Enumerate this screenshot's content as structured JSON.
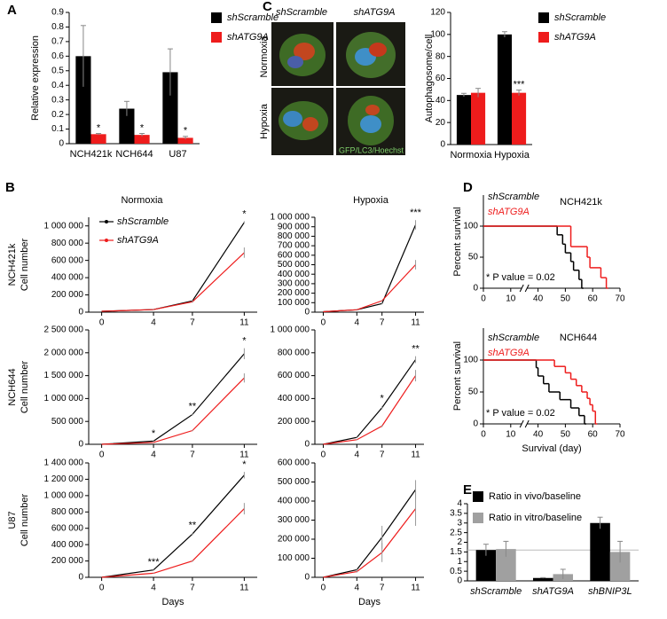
{
  "chart_data": [
    {
      "type": "bar",
      "panel": "A",
      "ylabel": "Relative expression",
      "categories": [
        "NCH421k",
        "NCH644",
        "U87"
      ],
      "series": [
        {
          "name": "shScramble",
          "color": "#000000",
          "values": [
            0.6,
            0.24,
            0.49
          ],
          "errors": [
            0.21,
            0.05,
            0.16
          ]
        },
        {
          "name": "shATG9A",
          "color": "#ee1c1c",
          "values": [
            0.065,
            0.06,
            0.04
          ],
          "errors": [
            0.005,
            0.01,
            0.01
          ]
        }
      ],
      "stars": [
        "*",
        "*",
        "*"
      ],
      "ylim": [
        0,
        0.9
      ],
      "yticks": [
        0,
        0.1,
        0.2,
        0.3,
        0.4,
        0.5,
        0.6,
        0.7,
        0.8,
        0.9
      ],
      "legend": true
    },
    {
      "type": "bar",
      "panel": "C",
      "ylabel": "Autophagosome/cell",
      "categories": [
        "Normoxia",
        "Hypoxia"
      ],
      "series": [
        {
          "name": "shScramble",
          "color": "#000000",
          "values": [
            45,
            100
          ],
          "errors": [
            1.5,
            2.5
          ]
        },
        {
          "name": "shATG9A",
          "color": "#ee1c1c",
          "values": [
            47,
            47
          ],
          "errors": [
            4,
            2.5
          ]
        }
      ],
      "stars": [
        null,
        "***"
      ],
      "ylim": [
        0,
        120
      ],
      "yticks": [
        0,
        20,
        40,
        60,
        80,
        100,
        120
      ],
      "legend": true
    },
    {
      "type": "line",
      "panel": "B",
      "title": "Normoxia",
      "row_label": "NCH421k",
      "ylabel": "Cell number",
      "x": [
        0,
        4,
        7,
        11
      ],
      "xlim": [
        -1,
        12
      ],
      "xticks": [
        0,
        4,
        7,
        11
      ],
      "series": [
        {
          "name": "shScramble",
          "color": "#000000",
          "values": [
            10000,
            30000,
            130000,
            1040000
          ],
          "errors": [
            0,
            3000,
            10000,
            15000
          ]
        },
        {
          "name": "shATG9A",
          "color": "#ee1c1c",
          "values": [
            10000,
            30000,
            120000,
            690000
          ],
          "errors": [
            0,
            3000,
            10000,
            60000
          ]
        }
      ],
      "stars": [
        null,
        null,
        null,
        "*"
      ],
      "ylim": [
        0,
        1100000
      ],
      "yticks": [
        0,
        {
          "value": 200000,
          "label": "200 000"
        },
        {
          "value": 400000,
          "label": "400 000"
        },
        {
          "value": 600000,
          "label": "600 000"
        },
        {
          "value": 800000,
          "label": "800 000"
        },
        {
          "value": 1000000,
          "label": "1 000 000"
        }
      ],
      "legend": true
    },
    {
      "type": "line",
      "title": "Hypoxia",
      "x": [
        0,
        4,
        7,
        11
      ],
      "xlim": [
        -1,
        12
      ],
      "xticks": [
        0,
        4,
        7,
        11
      ],
      "series": [
        {
          "name": "shScramble",
          "color": "#000000",
          "values": [
            5000,
            25000,
            90000,
            920000
          ],
          "errors": [
            0,
            2000,
            8000,
            50000
          ]
        },
        {
          "name": "shATG9A",
          "color": "#ee1c1c",
          "values": [
            5000,
            25000,
            120000,
            500000
          ],
          "errors": [
            0,
            2000,
            8000,
            50000
          ]
        }
      ],
      "stars": [
        null,
        null,
        null,
        "***"
      ],
      "ylim": [
        0,
        1000000
      ],
      "yticks": [
        0,
        {
          "value": 100000,
          "label": "100 000"
        },
        {
          "value": 200000,
          "label": "200 000"
        },
        {
          "value": 300000,
          "label": "300 000"
        },
        {
          "value": 400000,
          "label": "400 000"
        },
        {
          "value": 500000,
          "label": "500 000"
        },
        {
          "value": 600000,
          "label": "600 000"
        },
        {
          "value": 700000,
          "label": "700 000"
        },
        {
          "value": 800000,
          "label": "800 000"
        },
        {
          "value": 900000,
          "label": "900 000"
        },
        {
          "value": 1000000,
          "label": "1 000 000"
        }
      ]
    },
    {
      "type": "line",
      "row_label": "NCH644",
      "ylabel": "Cell number",
      "x": [
        0,
        4,
        7,
        11
      ],
      "xlim": [
        -1,
        12
      ],
      "xticks": [
        0,
        4,
        7,
        11
      ],
      "series": [
        {
          "name": "shScramble",
          "color": "#000000",
          "values": [
            0,
            70000,
            650000,
            1980000
          ],
          "errors": [
            0,
            10000,
            20000,
            120000
          ]
        },
        {
          "name": "shATG9A",
          "color": "#ee1c1c",
          "values": [
            0,
            40000,
            300000,
            1450000
          ],
          "errors": [
            0,
            5000,
            15000,
            100000
          ]
        }
      ],
      "stars": [
        null,
        "*",
        "**",
        "*"
      ],
      "ylim": [
        0,
        2500000
      ],
      "yticks": [
        0,
        {
          "value": 500000,
          "label": "500 000"
        },
        {
          "value": 1000000,
          "label": "1 000 000"
        },
        {
          "value": 1500000,
          "label": "1 500 000"
        },
        {
          "value": 2000000,
          "label": "2 000 000"
        },
        {
          "value": 2500000,
          "label": "2 500 000"
        }
      ]
    },
    {
      "type": "line",
      "x": [
        0,
        4,
        7,
        11
      ],
      "xlim": [
        -1,
        12
      ],
      "xticks": [
        0,
        4,
        7,
        11
      ],
      "series": [
        {
          "name": "shScramble",
          "color": "#000000",
          "values": [
            0,
            60000,
            320000,
            740000
          ],
          "errors": [
            0,
            5000,
            15000,
            30000
          ]
        },
        {
          "name": "shATG9A",
          "color": "#ee1c1c",
          "values": [
            0,
            40000,
            160000,
            600000
          ],
          "errors": [
            0,
            5000,
            10000,
            50000
          ]
        }
      ],
      "stars": [
        null,
        null,
        "*",
        "**"
      ],
      "ylim": [
        0,
        1000000
      ],
      "yticks": [
        0,
        {
          "value": 200000,
          "label": "200 000"
        },
        {
          "value": 400000,
          "label": "400 000"
        },
        {
          "value": 600000,
          "label": "600 000"
        },
        {
          "value": 800000,
          "label": "800 000"
        },
        {
          "value": 1000000,
          "label": "1 000 000"
        }
      ]
    },
    {
      "type": "line",
      "row_label": "U87",
      "ylabel": "Cell number",
      "xlabel": "Days",
      "x": [
        0,
        4,
        7,
        11
      ],
      "xlim": [
        -1,
        12
      ],
      "xticks": [
        0,
        4,
        7,
        11
      ],
      "series": [
        {
          "name": "shScramble",
          "color": "#000000",
          "values": [
            0,
            90000,
            530000,
            1250000
          ],
          "errors": [
            0,
            5000,
            15000,
            40000
          ]
        },
        {
          "name": "shATG9A",
          "color": "#ee1c1c",
          "values": [
            0,
            50000,
            200000,
            840000
          ],
          "errors": [
            0,
            5000,
            10000,
            70000
          ]
        }
      ],
      "stars": [
        null,
        "***",
        "**",
        "*"
      ],
      "ylim": [
        0,
        1400000
      ],
      "yticks": [
        0,
        {
          "value": 200000,
          "label": "200 000"
        },
        {
          "value": 400000,
          "label": "400 000"
        },
        {
          "value": 600000,
          "label": "600 000"
        },
        {
          "value": 800000,
          "label": "800 000"
        },
        {
          "value": 1000000,
          "label": "1 000 000"
        },
        {
          "value": 1200000,
          "label": "1 200 000"
        },
        {
          "value": 1400000,
          "label": "1 400 000"
        }
      ]
    },
    {
      "type": "line",
      "xlabel": "Days",
      "x": [
        0,
        4,
        7,
        11
      ],
      "xlim": [
        -1,
        12
      ],
      "xticks": [
        0,
        4,
        7,
        11
      ],
      "series": [
        {
          "name": "shScramble",
          "color": "#000000",
          "values": [
            0,
            40000,
            210000,
            460000
          ],
          "errors": [
            0,
            5000,
            60000,
            50000
          ]
        },
        {
          "name": "shATG9A",
          "color": "#ee1c1c",
          "values": [
            0,
            30000,
            130000,
            360000
          ],
          "errors": [
            0,
            5000,
            50000,
            90000
          ]
        }
      ],
      "ylim": [
        0,
        600000
      ],
      "yticks": [
        0,
        {
          "value": 100000,
          "label": "100 000"
        },
        {
          "value": 200000,
          "label": "200 000"
        },
        {
          "value": 300000,
          "label": "300 000"
        },
        {
          "value": 400000,
          "label": "400 000"
        },
        {
          "value": 500000,
          "label": "500 000"
        },
        {
          "value": 600000,
          "label": "600 000"
        }
      ]
    },
    {
      "type": "step",
      "panel": "D",
      "title": "NCH421k",
      "ylabel": "Percent survival",
      "note": "* P value = 0.02",
      "series": [
        {
          "name": "shScramble",
          "color": "#000000",
          "x": [
            0,
            47,
            49,
            50,
            52,
            53,
            55,
            56
          ],
          "values": [
            100,
            86,
            71,
            57,
            43,
            29,
            14,
            0
          ]
        },
        {
          "name": "shATG9A",
          "color": "#ee1c1c",
          "x": [
            0,
            52,
            58,
            59,
            63,
            65
          ],
          "values": [
            100,
            67,
            50,
            33,
            17,
            0
          ]
        }
      ],
      "xlim": [
        0,
        70
      ],
      "xticks": [
        0,
        10,
        40,
        50,
        60,
        70
      ],
      "axis_break": [
        10,
        40
      ],
      "ylim": [
        0,
        150
      ],
      "yticks": [
        0,
        50,
        100
      ],
      "legend": true
    },
    {
      "type": "step",
      "title": "NCH644",
      "ylabel": "Percent survival",
      "xlabel": "Survival (day)",
      "note": "* P value = 0.02",
      "series": [
        {
          "name": "shScramble",
          "color": "#000000",
          "x": [
            0,
            38,
            40,
            42,
            44,
            48,
            52,
            55,
            57
          ],
          "values": [
            100,
            88,
            75,
            63,
            50,
            38,
            25,
            13,
            0
          ]
        },
        {
          "name": "shATG9A",
          "color": "#ee1c1c",
          "x": [
            0,
            46,
            50,
            52,
            54,
            56,
            58,
            59,
            60,
            61
          ],
          "values": [
            100,
            90,
            80,
            70,
            60,
            50,
            40,
            30,
            20,
            0
          ]
        }
      ],
      "xlim": [
        0,
        70
      ],
      "xticks": [
        0,
        10,
        40,
        50,
        60,
        70
      ],
      "axis_break": [
        10,
        40
      ],
      "ylim": [
        0,
        150
      ],
      "yticks": [
        0,
        50,
        100
      ],
      "legend": true
    },
    {
      "type": "bar",
      "panel": "E",
      "categories": [
        "shScramble",
        "shATG9A",
        "shBNIP3L"
      ],
      "series": [
        {
          "name": "Ratio in vivo/baseline",
          "color": "#000000",
          "values": [
            1.6,
            0.15,
            3.0
          ],
          "errors": [
            0.3,
            0.02,
            0.3
          ]
        },
        {
          "name": "Ratio in vitro/baseline",
          "color": "#a0a0a0",
          "values": [
            1.65,
            0.35,
            1.5
          ],
          "errors": [
            0.4,
            0.25,
            0.55
          ]
        }
      ],
      "reference_line": 1.6,
      "ylim": [
        0,
        4
      ],
      "yticks": [
        0,
        0.5,
        1,
        1.5,
        2,
        2.5,
        3,
        3.5,
        4
      ],
      "legend": true
    }
  ],
  "micrographs": {
    "columns": [
      "shScramble",
      "shATG9A"
    ],
    "rows": [
      "Normoxia",
      "Hypoxia"
    ],
    "caption": "GFP/LC3/Hoechst"
  }
}
